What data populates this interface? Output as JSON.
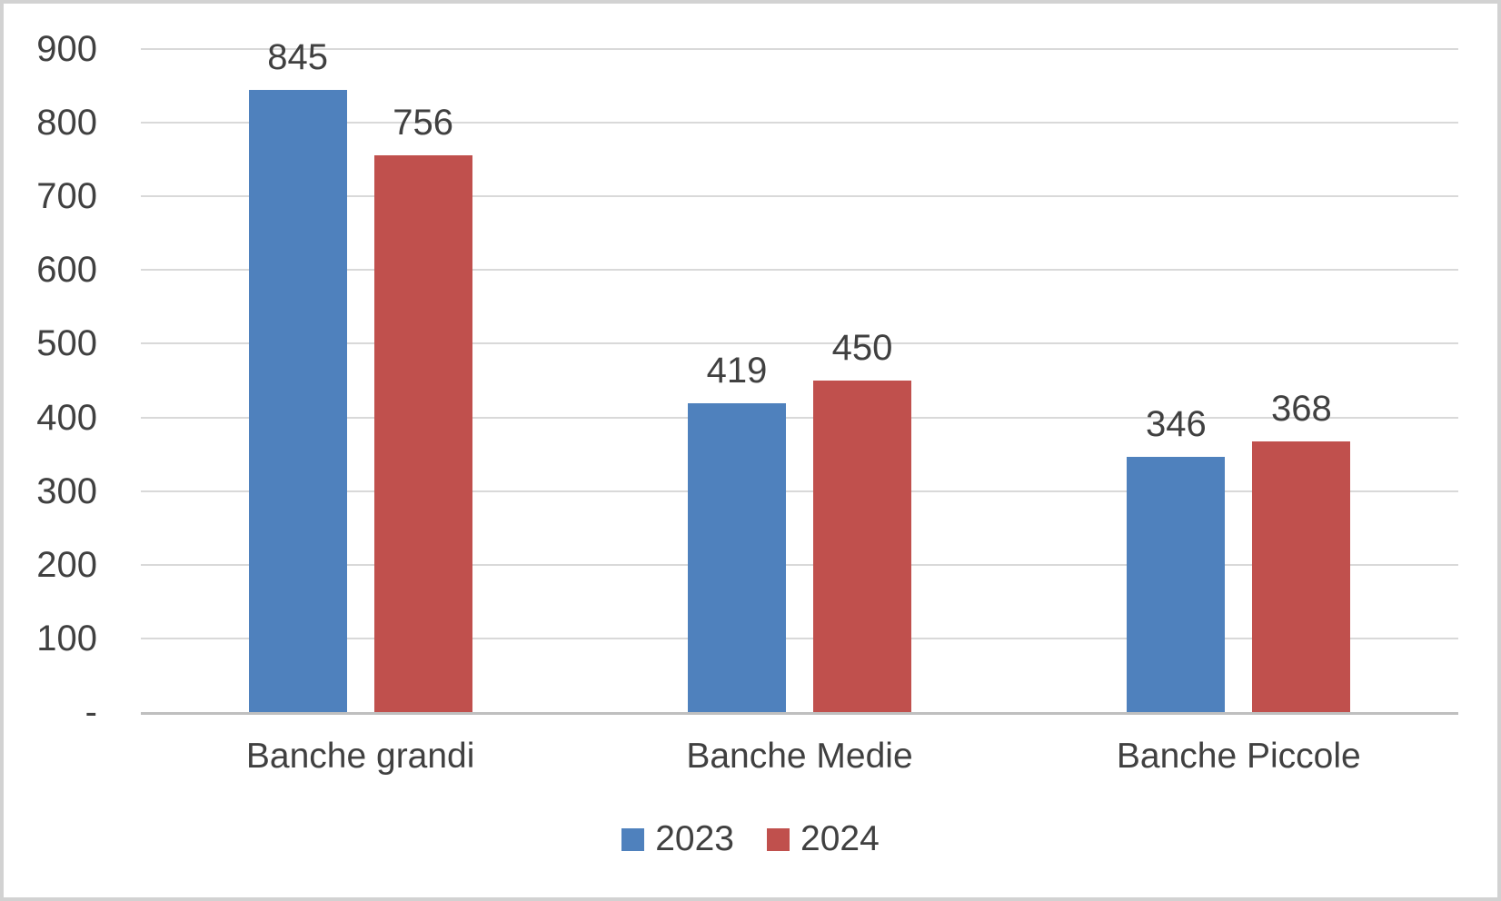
{
  "chart_data": {
    "type": "bar",
    "categories": [
      "Banche grandi",
      "Banche Medie",
      "Banche Piccole"
    ],
    "series": [
      {
        "name": "2023",
        "color": "#4F81BD",
        "values": [
          845,
          419,
          346
        ]
      },
      {
        "name": "2024",
        "color": "#C0504D",
        "values": [
          756,
          450,
          368
        ]
      }
    ],
    "title": "",
    "xlabel": "",
    "ylabel": "",
    "ylim": [
      0,
      900
    ],
    "ytick_interval": 100,
    "ytick_labels": [
      "-",
      "100",
      "200",
      "300",
      "400",
      "500",
      "600",
      "700",
      "800",
      "900"
    ],
    "grid": "horizontal-only",
    "legend_position": "bottom-center",
    "data_labels": "above-bars"
  },
  "colors": {
    "text": "#404040",
    "gridline": "#D9D9D9",
    "axis_line": "#BFBFBF",
    "frame_border": "#D2D2D2",
    "background": "#FFFFFF"
  }
}
